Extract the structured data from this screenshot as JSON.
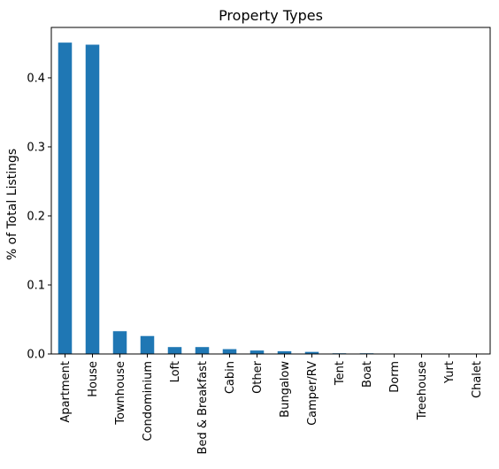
{
  "chart_data": {
    "type": "bar",
    "title": "Property Types",
    "xlabel": "",
    "ylabel": "% of Total Listings",
    "ylim": [
      0,
      0.473
    ],
    "yticks": [
      0.0,
      0.1,
      0.2,
      0.3,
      0.4
    ],
    "ytick_labels": [
      "0.0",
      "0.1",
      "0.2",
      "0.3",
      "0.4"
    ],
    "grid": false,
    "categories": [
      "Apartment",
      "House",
      "Townhouse",
      "Condominium",
      "Loft",
      "Bed & Breakfast",
      "Cabin",
      "Other",
      "Bungalow",
      "Camper/RV",
      "Tent",
      "Boat",
      "Dorm",
      "Treehouse",
      "Yurt",
      "Chalet"
    ],
    "values": [
      0.451,
      0.448,
      0.033,
      0.026,
      0.01,
      0.01,
      0.007,
      0.005,
      0.004,
      0.003,
      0.001,
      0.001,
      0.0005,
      0.0004,
      0.0003,
      0.0002
    ],
    "bar_color": "#1f77b4"
  }
}
